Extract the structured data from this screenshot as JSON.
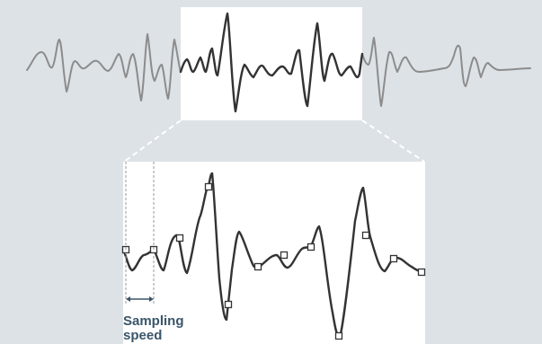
{
  "figure": {
    "caption_line1": "Sampling",
    "caption_line2": "speed"
  },
  "colors": {
    "background": "#dde2e7",
    "panel": "#ffffff",
    "signal_faded": "#8c8c8c",
    "signal_main": "#333333",
    "arrow": "#3a5569",
    "caption": "#3a5569",
    "guide_lines": "#ffffff",
    "sample_guides": "#9a9a9a"
  }
}
